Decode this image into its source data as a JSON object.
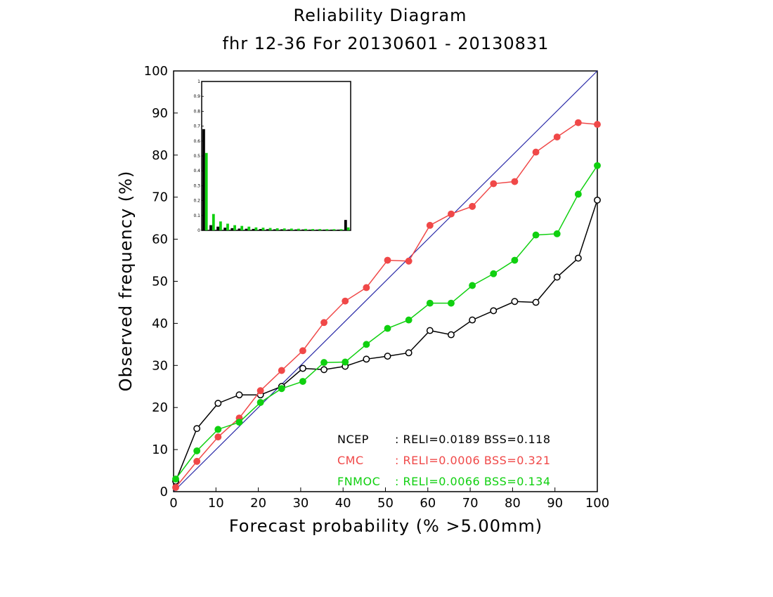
{
  "chart_data": {
    "type": "line",
    "title": "Reliability Diagram",
    "subtitle": "fhr 12-36 For 20130601 - 20130831",
    "xlabel": "Forecast probability (% >5.00mm)",
    "ylabel": "Observed frequency (%)",
    "xlim": [
      0,
      100
    ],
    "ylim": [
      0,
      100
    ],
    "x_ticks": [
      "0",
      "10",
      "20",
      "30",
      "40",
      "50",
      "60",
      "70",
      "80",
      "90",
      "100"
    ],
    "y_ticks": [
      "0",
      "10",
      "20",
      "30",
      "40",
      "50",
      "60",
      "70",
      "80",
      "90",
      "100"
    ],
    "grid": false,
    "diagonal_color": "#2a2aa8",
    "x": [
      0.5,
      5.5,
      10.5,
      15.5,
      20.5,
      25.5,
      30.5,
      35.5,
      40.5,
      45.5,
      50.5,
      55.5,
      60.5,
      65.5,
      70.5,
      75.5,
      80.5,
      85.5,
      90.5,
      95.5,
      100
    ],
    "series": [
      {
        "name": "NCEP",
        "color": "#000000",
        "marker": "open-circle",
        "stats": ": RELI=0.0189 BSS=0.118",
        "values": [
          2.5,
          15.0,
          21.0,
          23.0,
          23.0,
          25.0,
          29.3,
          29.0,
          29.8,
          31.5,
          32.2,
          33.0,
          38.3,
          37.3,
          40.8,
          43.0,
          45.2,
          45.0,
          51.0,
          55.5,
          69.3
        ]
      },
      {
        "name": "CMC",
        "color": "#f04848",
        "marker": "filled-circle",
        "stats": ": RELI=0.0006 BSS=0.321",
        "values": [
          1.0,
          7.2,
          13.0,
          17.5,
          24.0,
          28.8,
          33.5,
          40.2,
          45.3,
          48.5,
          55.0,
          54.8,
          63.3,
          66.0,
          67.8,
          73.2,
          73.7,
          80.7,
          84.3,
          87.7,
          87.3
        ]
      },
      {
        "name": "FNMOC",
        "color": "#10d010",
        "marker": "filled-circle",
        "stats": ": RELI=0.0066 BSS=0.134",
        "values": [
          3.0,
          9.7,
          14.8,
          16.5,
          21.2,
          24.5,
          26.2,
          30.7,
          30.8,
          35.0,
          38.8,
          40.8,
          44.8,
          44.8,
          49.0,
          51.8,
          55.0,
          61.0,
          61.3,
          70.7,
          77.5
        ]
      }
    ],
    "inset_histogram": {
      "type": "bar",
      "ylim": [
        0,
        1
      ],
      "y_ticks": [
        "0",
        "0.1",
        "0.2",
        "0.3",
        "0.4",
        "0.5",
        "0.6",
        "0.7",
        "0.8",
        "0.9",
        "1"
      ],
      "series": [
        {
          "name": "NCEP",
          "color": "#000000",
          "values": [
            0.68,
            0.035,
            0.025,
            0.018,
            0.015,
            0.012,
            0.011,
            0.01,
            0.009,
            0.008,
            0.007,
            0.007,
            0.006,
            0.006,
            0.006,
            0.005,
            0.005,
            0.005,
            0.005,
            0.005,
            0.07
          ]
        },
        {
          "name": "FNMOC",
          "color": "#10d010",
          "values": [
            0.52,
            0.11,
            0.06,
            0.045,
            0.035,
            0.03,
            0.025,
            0.02,
            0.018,
            0.016,
            0.014,
            0.013,
            0.012,
            0.011,
            0.01,
            0.009,
            0.009,
            0.008,
            0.008,
            0.008,
            0.02
          ]
        }
      ]
    }
  }
}
